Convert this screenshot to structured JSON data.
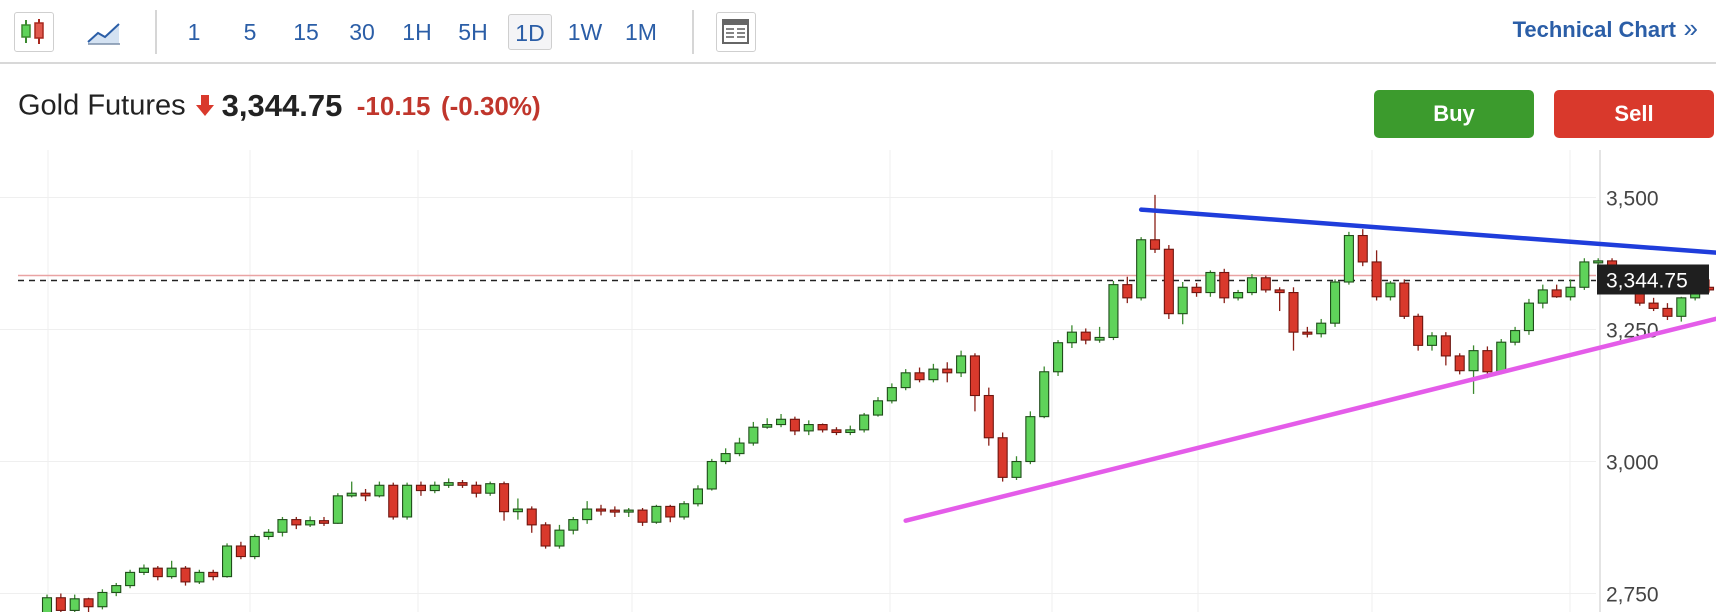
{
  "toolbar": {
    "icons": [
      "candlestick-chart-icon",
      "line-chart-icon",
      "news-layout-icon"
    ],
    "timeframes": [
      "1",
      "5",
      "15",
      "30",
      "1H",
      "5H",
      "1D",
      "1W",
      "1M"
    ],
    "active_timeframe": "1D",
    "technical_chart_label": "Technical Chart",
    "technical_chart_chevron": "»"
  },
  "quote": {
    "instrument": "Gold Futures",
    "direction_icon": "down-arrow-icon",
    "price": "3,344.75",
    "change": "-10.15",
    "change_pct": "(-0.30%)"
  },
  "actions": {
    "buy_label": "Buy",
    "sell_label": "Sell"
  },
  "colors": {
    "accent": "#2b5ea7",
    "up_candle": "#5fd35a",
    "down_candle": "#d9392c",
    "resistance_line": "#1f3ddb",
    "support_line": "#e45ce9",
    "buy": "#3c9b2d",
    "sell": "#d9392c"
  },
  "chart_data": {
    "type": "candlestick",
    "instrument": "Gold Futures",
    "interval": "1D",
    "y_ticks": [
      "3,500",
      "3,250",
      "3,000",
      "2,750"
    ],
    "y_tick_values": [
      3500,
      3250,
      3000,
      2750
    ],
    "ylim": [
      2715,
      3590
    ],
    "last_price_label": "3,344.75",
    "last_price": 3344.75,
    "grid": true,
    "candles": [
      [
        2713,
        2742,
        2705,
        2748
      ],
      [
        2742,
        2718,
        2710,
        2750
      ],
      [
        2718,
        2740,
        2712,
        2748
      ],
      [
        2740,
        2725,
        2712,
        2742
      ],
      [
        2725,
        2752,
        2720,
        2758
      ],
      [
        2752,
        2765,
        2745,
        2770
      ],
      [
        2765,
        2790,
        2760,
        2795
      ],
      [
        2790,
        2798,
        2785,
        2805
      ],
      [
        2798,
        2782,
        2775,
        2802
      ],
      [
        2782,
        2798,
        2778,
        2812
      ],
      [
        2798,
        2772,
        2765,
        2802
      ],
      [
        2772,
        2790,
        2768,
        2795
      ],
      [
        2790,
        2782,
        2775,
        2795
      ],
      [
        2782,
        2840,
        2780,
        2845
      ],
      [
        2840,
        2820,
        2815,
        2848
      ],
      [
        2820,
        2858,
        2815,
        2862
      ],
      [
        2858,
        2866,
        2852,
        2872
      ],
      [
        2866,
        2890,
        2858,
        2895
      ],
      [
        2890,
        2880,
        2872,
        2895
      ],
      [
        2880,
        2888,
        2876,
        2896
      ],
      [
        2888,
        2883,
        2878,
        2895
      ],
      [
        2883,
        2935,
        2882,
        2940
      ],
      [
        2935,
        2940,
        2932,
        2962
      ],
      [
        2940,
        2935,
        2925,
        2948
      ],
      [
        2935,
        2955,
        2932,
        2962
      ],
      [
        2955,
        2895,
        2890,
        2960
      ],
      [
        2895,
        2955,
        2890,
        2960
      ],
      [
        2955,
        2945,
        2935,
        2962
      ],
      [
        2945,
        2955,
        2940,
        2962
      ],
      [
        2955,
        2960,
        2950,
        2968
      ],
      [
        2960,
        2955,
        2950,
        2965
      ],
      [
        2955,
        2940,
        2932,
        2962
      ],
      [
        2940,
        2958,
        2935,
        2962
      ],
      [
        2958,
        2905,
        2888,
        2962
      ],
      [
        2905,
        2910,
        2890,
        2930
      ],
      [
        2910,
        2880,
        2865,
        2915
      ],
      [
        2880,
        2840,
        2835,
        2885
      ],
      [
        2840,
        2870,
        2835,
        2880
      ],
      [
        2870,
        2890,
        2862,
        2895
      ],
      [
        2890,
        2910,
        2882,
        2925
      ],
      [
        2910,
        2908,
        2898,
        2918
      ],
      [
        2908,
        2905,
        2895,
        2915
      ],
      [
        2905,
        2908,
        2895,
        2912
      ],
      [
        2908,
        2885,
        2878,
        2912
      ],
      [
        2885,
        2915,
        2882,
        2918
      ],
      [
        2915,
        2895,
        2885,
        2918
      ],
      [
        2895,
        2920,
        2890,
        2925
      ],
      [
        2920,
        2948,
        2915,
        2955
      ],
      [
        2948,
        3000,
        2945,
        3005
      ],
      [
        3000,
        3015,
        2995,
        3025
      ],
      [
        3015,
        3035,
        3010,
        3045
      ],
      [
        3035,
        3065,
        3030,
        3075
      ],
      [
        3065,
        3070,
        3062,
        3082
      ],
      [
        3070,
        3080,
        3065,
        3090
      ],
      [
        3080,
        3058,
        3050,
        3085
      ],
      [
        3058,
        3070,
        3050,
        3078
      ],
      [
        3070,
        3060,
        3055,
        3072
      ],
      [
        3060,
        3055,
        3050,
        3065
      ],
      [
        3055,
        3060,
        3050,
        3068
      ],
      [
        3060,
        3088,
        3055,
        3092
      ],
      [
        3088,
        3115,
        3085,
        3122
      ],
      [
        3115,
        3140,
        3110,
        3148
      ],
      [
        3140,
        3168,
        3135,
        3175
      ],
      [
        3168,
        3155,
        3150,
        3178
      ],
      [
        3155,
        3175,
        3150,
        3185
      ],
      [
        3175,
        3168,
        3150,
        3188
      ],
      [
        3168,
        3200,
        3160,
        3210
      ],
      [
        3200,
        3125,
        3095,
        3205
      ],
      [
        3125,
        3045,
        3030,
        3140
      ],
      [
        3045,
        2970,
        2962,
        3055
      ],
      [
        2970,
        3000,
        2965,
        3010
      ],
      [
        3000,
        3085,
        2995,
        3095
      ],
      [
        3085,
        3170,
        3082,
        3180
      ],
      [
        3170,
        3225,
        3162,
        3230
      ],
      [
        3225,
        3245,
        3215,
        3258
      ],
      [
        3245,
        3230,
        3222,
        3252
      ],
      [
        3230,
        3235,
        3225,
        3255
      ],
      [
        3235,
        3335,
        3230,
        3342
      ],
      [
        3335,
        3310,
        3300,
        3350
      ],
      [
        3310,
        3420,
        3305,
        3425
      ],
      [
        3420,
        3402,
        3395,
        3505
      ],
      [
        3402,
        3280,
        3270,
        3410
      ],
      [
        3280,
        3330,
        3260,
        3340
      ],
      [
        3330,
        3320,
        3312,
        3338
      ],
      [
        3320,
        3358,
        3312,
        3362
      ],
      [
        3358,
        3310,
        3300,
        3365
      ],
      [
        3310,
        3320,
        3305,
        3325
      ],
      [
        3320,
        3348,
        3315,
        3355
      ],
      [
        3348,
        3325,
        3320,
        3352
      ],
      [
        3325,
        3320,
        3285,
        3330
      ],
      [
        3320,
        3245,
        3210,
        3330
      ],
      [
        3245,
        3242,
        3235,
        3255
      ],
      [
        3242,
        3262,
        3235,
        3270
      ],
      [
        3262,
        3340,
        3255,
        3345
      ],
      [
        3340,
        3428,
        3335,
        3435
      ],
      [
        3428,
        3378,
        3370,
        3440
      ],
      [
        3378,
        3312,
        3305,
        3400
      ],
      [
        3312,
        3338,
        3305,
        3342
      ],
      [
        3338,
        3275,
        3270,
        3345
      ],
      [
        3275,
        3220,
        3210,
        3280
      ],
      [
        3220,
        3238,
        3210,
        3245
      ],
      [
        3238,
        3200,
        3182,
        3245
      ],
      [
        3200,
        3172,
        3165,
        3205
      ],
      [
        3172,
        3210,
        3128,
        3220
      ],
      [
        3210,
        3170,
        3158,
        3218
      ],
      [
        3170,
        3226,
        3165,
        3232
      ],
      [
        3226,
        3248,
        3220,
        3255
      ],
      [
        3248,
        3300,
        3240,
        3308
      ],
      [
        3300,
        3325,
        3290,
        3335
      ],
      [
        3325,
        3312,
        3310,
        3335
      ],
      [
        3312,
        3330,
        3305,
        3345
      ],
      [
        3330,
        3378,
        3325,
        3385
      ],
      [
        3378,
        3380,
        3370,
        3385
      ],
      [
        3380,
        3360,
        3345,
        3385
      ],
      [
        3360,
        3350,
        3345,
        3368
      ],
      [
        3350,
        3300,
        3295,
        3360
      ],
      [
        3300,
        3290,
        3285,
        3310
      ],
      [
        3290,
        3275,
        3268,
        3300
      ],
      [
        3275,
        3310,
        3265,
        3312
      ],
      [
        3310,
        3330,
        3305,
        3342
      ],
      [
        3330,
        3325,
        3320,
        3345
      ],
      [
        3325,
        3400,
        3320,
        3410
      ],
      [
        3400,
        3372,
        3365,
        3415
      ],
      [
        3372,
        3400,
        3368,
        3405
      ],
      [
        3400,
        3384,
        3378,
        3405
      ],
      [
        3384,
        3375,
        3370,
        3410
      ],
      [
        3375,
        3338,
        3330,
        3380
      ],
      [
        3338,
        3340,
        3335,
        3345
      ],
      [
        3340,
        3355,
        3335,
        3358
      ],
      [
        3355,
        3345,
        3335,
        3362
      ]
    ],
    "trendlines": [
      {
        "name": "resistance",
        "color": "#1f3ddb",
        "from": [
          79,
          3477
        ],
        "to": [
          131,
          3375
        ]
      },
      {
        "name": "support",
        "color": "#e45ce9",
        "from": [
          62,
          2888
        ],
        "to": [
          133,
          3352
        ]
      }
    ]
  }
}
